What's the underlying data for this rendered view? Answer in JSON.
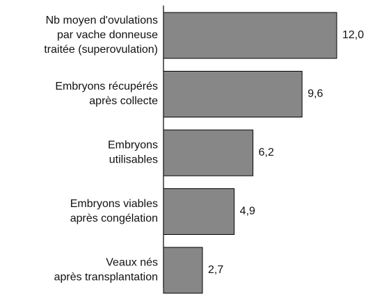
{
  "chart_data": {
    "type": "barh",
    "categories": [
      [
        "Nb moyen d'ovulations",
        "par vache donneuse",
        "traitée (superovulation)"
      ],
      [
        "Embryons récupérés",
        "après collecte"
      ],
      [
        "Embryons",
        "utilisables"
      ],
      [
        "Embryons viables",
        "après congélation"
      ],
      [
        "Veaux nés",
        "après transplantation"
      ]
    ],
    "values": [
      12.0,
      9.6,
      6.2,
      4.9,
      2.7
    ],
    "value_labels": [
      "12,0",
      "9,6",
      "6,2",
      "4,9",
      "2,7"
    ],
    "color": "#878787"
  }
}
